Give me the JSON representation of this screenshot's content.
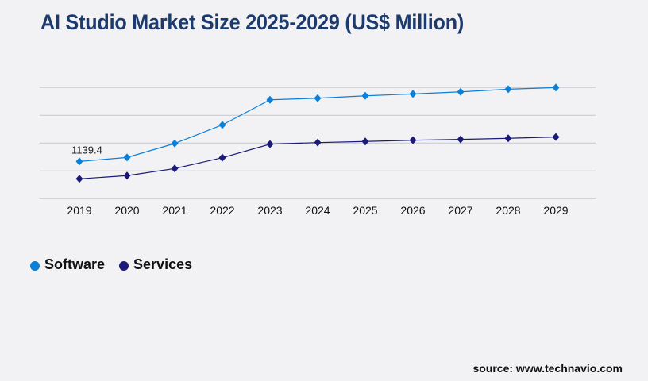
{
  "title": "AI Studio Market Size 2025-2029 (US$ Million)",
  "source": "source: www.technavio.com",
  "colors": {
    "software": "#0a80d8",
    "services": "#1b1a78",
    "title": "#1c3a6b",
    "grid": "#c8c8cc"
  },
  "chart_data": {
    "type": "line",
    "title": "AI Studio Market Size 2025-2029 (US$ Million)",
    "categories": [
      "2019",
      "2020",
      "2021",
      "2022",
      "2023",
      "2024",
      "2025",
      "2026",
      "2027",
      "2028",
      "2029"
    ],
    "ylim": [
      0,
      3400
    ],
    "grid": true,
    "legend_position": "bottom-left",
    "series": [
      {
        "name": "Software",
        "color": "#0a80d8",
        "values": [
          1139.4,
          1261,
          1689,
          2257,
          3024,
          3073,
          3146,
          3204,
          3267,
          3350,
          3398
        ]
      },
      {
        "name": "Services",
        "color": "#1b1a78",
        "values": [
          607,
          705,
          923,
          1254,
          1667,
          1715,
          1749,
          1788,
          1813,
          1847,
          1886
        ]
      }
    ],
    "data_labels": [
      {
        "series": "Software",
        "category": "2019",
        "text": "1139.4"
      }
    ]
  }
}
